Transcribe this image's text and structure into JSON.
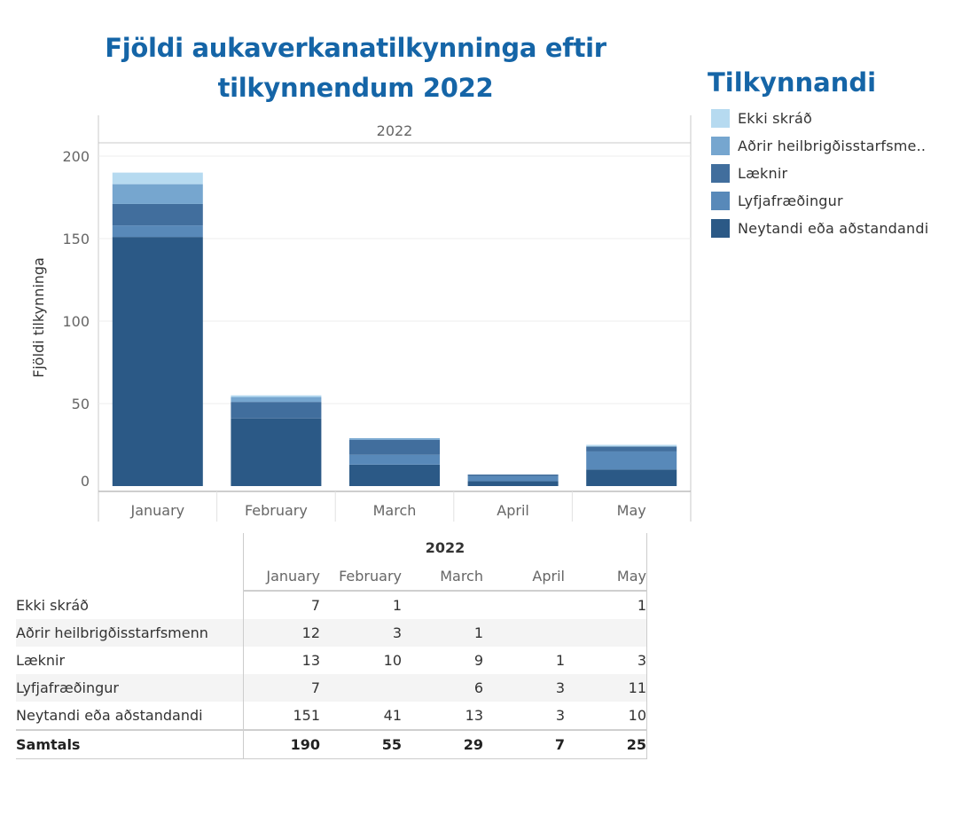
{
  "chart_data": {
    "type": "bar",
    "stacked": true,
    "title": "Fjöldi aukaverkanatilkynninga eftir tilkynnendum 2022",
    "column_header": "2022",
    "ylabel": "Fjöldi tilkynninga",
    "xlabel": "",
    "ylim": [
      0,
      200
    ],
    "yticks": [
      0,
      50,
      100,
      150,
      200
    ],
    "grid": true,
    "categories": [
      "January",
      "February",
      "March",
      "April",
      "May"
    ],
    "series": [
      {
        "name": "Neytandi eða aðstandandi",
        "values": [
          151,
          41,
          13,
          3,
          10
        ],
        "color": "#2b5986"
      },
      {
        "name": "Lyfjafræðingur",
        "values": [
          7,
          0,
          6,
          3,
          11
        ],
        "color": "#5889b9"
      },
      {
        "name": "Læknir",
        "values": [
          13,
          10,
          9,
          1,
          3
        ],
        "color": "#416e9d"
      },
      {
        "name": "Aðrir heilbrigðisstarfsmenn",
        "values": [
          12,
          3,
          1,
          0,
          0
        ],
        "color": "#76a6cf"
      },
      {
        "name": "Ekki skráð",
        "values": [
          7,
          1,
          0,
          0,
          1
        ],
        "color": "#b6daf0"
      }
    ]
  },
  "legend": {
    "title": "Tilkynnandi",
    "items": [
      {
        "label": "Ekki skráð",
        "color": "#b6daf0"
      },
      {
        "label": "Aðrir heilbrigðisstarfsme..",
        "color": "#76a6cf"
      },
      {
        "label": "Læknir",
        "color": "#416e9d"
      },
      {
        "label": "Lyfjafræðingur",
        "color": "#5889b9"
      },
      {
        "label": "Neytandi eða aðstandandi",
        "color": "#2b5986"
      }
    ]
  },
  "table": {
    "year": "2022",
    "months": [
      "January",
      "February",
      "March",
      "April",
      "May"
    ],
    "rows": [
      {
        "label": "Ekki skráð",
        "values": [
          "7",
          "1",
          "",
          "",
          "1"
        ]
      },
      {
        "label": "Aðrir heilbrigðisstarfsmenn",
        "values": [
          "12",
          "3",
          "1",
          "",
          ""
        ]
      },
      {
        "label": "Læknir",
        "values": [
          "13",
          "10",
          "9",
          "1",
          "3"
        ]
      },
      {
        "label": "Lyfjafræðingur",
        "values": [
          "7",
          "",
          "6",
          "3",
          "11"
        ]
      },
      {
        "label": "Neytandi eða aðstandandi",
        "values": [
          "151",
          "41",
          "13",
          "3",
          "10"
        ]
      }
    ],
    "total": {
      "label": "Samtals",
      "values": [
        "190",
        "55",
        "29",
        "7",
        "25"
      ]
    }
  }
}
